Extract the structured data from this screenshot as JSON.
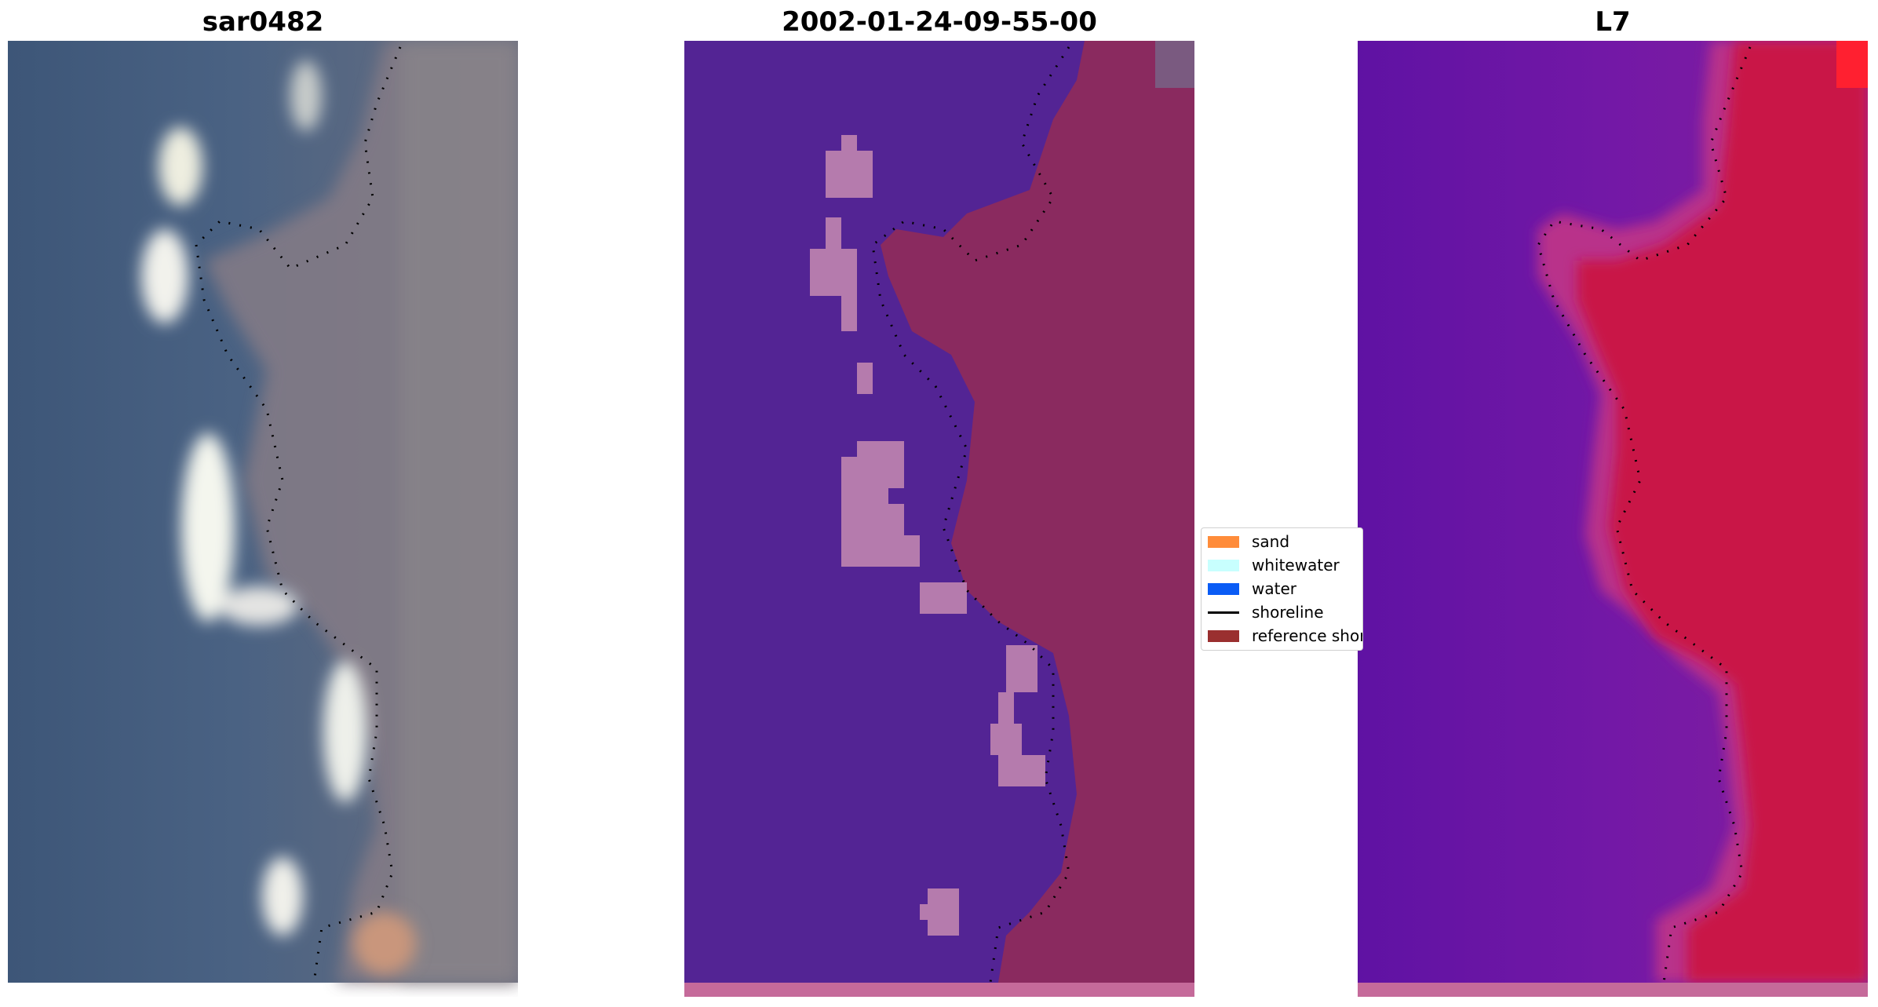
{
  "panels": [
    {
      "title": "sar0482",
      "image_description_icon": "rgb-satellite-image"
    },
    {
      "title": "2002-01-24-09-55-00",
      "image_description_icon": "classified-image"
    },
    {
      "title": "L7",
      "image_description_icon": "index-image"
    }
  ],
  "legend": {
    "items": [
      {
        "label": "sand",
        "color": "#ff8c3a",
        "kind": "patch"
      },
      {
        "label": "whitewater",
        "color": "#c8fffe",
        "kind": "patch"
      },
      {
        "label": "water",
        "color": "#0a5cf5",
        "kind": "patch"
      },
      {
        "label": "shoreline",
        "color": "#000000",
        "kind": "line"
      },
      {
        "label": "reference shoreline",
        "color": "#9a2f2f",
        "kind": "patch"
      }
    ]
  },
  "colors": {
    "water_class": "#532494",
    "land_class": "#8a2a5f",
    "whitewater_class": "#b57bad",
    "index_low": "#6a18a8",
    "index_high": "#cc1040",
    "rgb_water": "#3f5a80",
    "rgb_land": "#7a7880",
    "rgb_whitewater": "#e8eae6"
  }
}
